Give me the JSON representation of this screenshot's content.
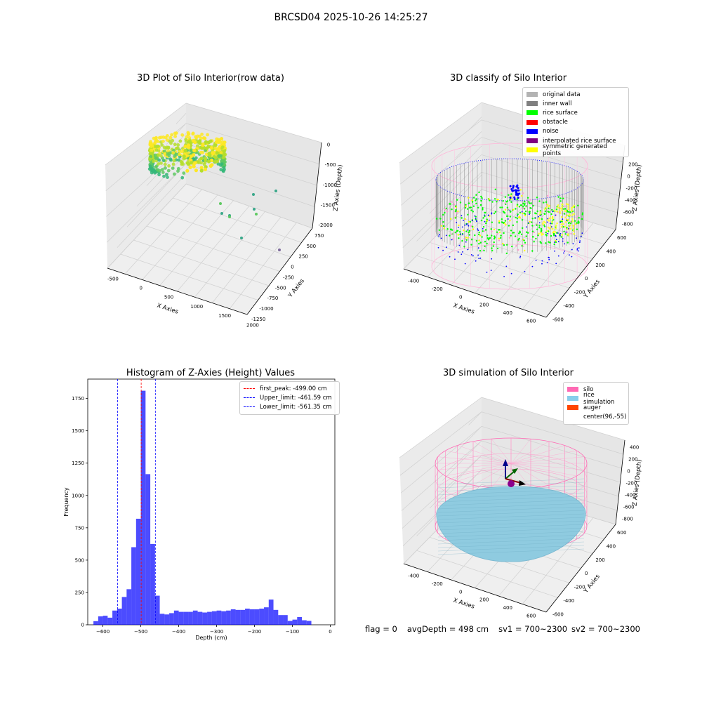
{
  "suptitle": "BRCSD04 2025-10-26 14:25:27",
  "chart_data": [
    {
      "type": "scatter",
      "title": "3D Plot of Silo Interior(row data)",
      "xlabel": "X Axies",
      "ylabel": "Y Axies",
      "zlabel": "Z Axies (Depth)",
      "xticks": [
        "-500",
        "0",
        "500",
        "1000",
        "1500",
        "2000"
      ],
      "yticks": [
        "-1250",
        "-1000",
        "-750",
        "-500",
        "-250",
        "0",
        "250",
        "500",
        "750"
      ],
      "zticks": [
        "-2000",
        "-1500",
        "-1000",
        "-500",
        "0"
      ],
      "colormap": [
        "#440154",
        "#21918c",
        "#5ec962",
        "#fde725"
      ]
    },
    {
      "type": "scatter",
      "title": "3D classify of Silo Interior",
      "xlabel": "X Axies",
      "ylabel": "Y Axies",
      "zlabel": "Z Axies (Depth)",
      "xticks": [
        "-400",
        "-200",
        "0",
        "200",
        "400",
        "600"
      ],
      "yticks": [
        "-600",
        "-400",
        "-200",
        "0",
        "200",
        "400",
        "600"
      ],
      "zticks": [
        "-800",
        "-600",
        "-400",
        "-200",
        "0",
        "200"
      ],
      "legend": [
        {
          "label": "original data",
          "color": "#b3b3b3"
        },
        {
          "label": "inner wall",
          "color": "#808080"
        },
        {
          "label": "rice surface",
          "color": "#00ff00"
        },
        {
          "label": "obstacle",
          "color": "#ff0000"
        },
        {
          "label": "noise",
          "color": "#0000ff"
        },
        {
          "label": "interpolated rice surface",
          "color": "#800080"
        },
        {
          "label": "symmetric generated points",
          "color": "#ffff00"
        }
      ]
    },
    {
      "type": "bar",
      "title": "Histogram of Z-Axies (Height) Values",
      "xlabel": "Depth (cm)",
      "ylabel": "Frequency",
      "xlim": [
        -640,
        12
      ],
      "ylim": [
        0,
        1900
      ],
      "xticks": [
        -600,
        -500,
        -400,
        -300,
        -200,
        -100,
        0
      ],
      "yticks": [
        0,
        250,
        500,
        750,
        1000,
        1250,
        1500,
        1750
      ],
      "bin_width": 12.5,
      "bin_start": -625,
      "values": [
        28,
        65,
        70,
        55,
        110,
        125,
        215,
        275,
        600,
        820,
        1810,
        1165,
        625,
        225,
        85,
        80,
        90,
        110,
        100,
        100,
        100,
        110,
        100,
        95,
        100,
        105,
        110,
        105,
        110,
        120,
        115,
        115,
        125,
        120,
        120,
        125,
        135,
        195,
        115,
        75,
        75,
        30,
        40,
        60,
        35,
        30
      ],
      "bar_color": "#0000ff",
      "vlines": [
        {
          "label": "first_peak: -499.00 cm",
          "x": -499.0,
          "color": "#ff0000"
        },
        {
          "label": "Upper_limit: -461.59 cm",
          "x": -461.59,
          "color": "#0000ff"
        },
        {
          "label": "Lower_limit: -561.35 cm",
          "x": -561.35,
          "color": "#0000ff"
        }
      ]
    },
    {
      "type": "scatter",
      "title": "3D simulation of Silo Interior",
      "xlabel": "X Axies",
      "ylabel": "Y Axies",
      "zlabel": "Z Axies (Depth)",
      "xticks": [
        "-400",
        "-200",
        "0",
        "200",
        "400",
        "600"
      ],
      "yticks": [
        "-600",
        "-400",
        "-200",
        "0",
        "200",
        "400",
        "600"
      ],
      "zticks": [
        "-800",
        "-600",
        "-400",
        "-200",
        "0",
        "200",
        "400"
      ],
      "legend": [
        {
          "label": "silo",
          "color": "#ff69b4"
        },
        {
          "label": "rice simulation",
          "color": "#87ceeb"
        },
        {
          "label": "auger",
          "color": "#ff4500"
        },
        {
          "label": "center(96,-55)",
          "color": ""
        }
      ]
    }
  ],
  "status": {
    "flag": "flag = 0",
    "avg_depth": "avgDepth = 498 cm",
    "sv1": "sv1 = 700~2300",
    "sv2": "sv2 = 700~2300"
  }
}
